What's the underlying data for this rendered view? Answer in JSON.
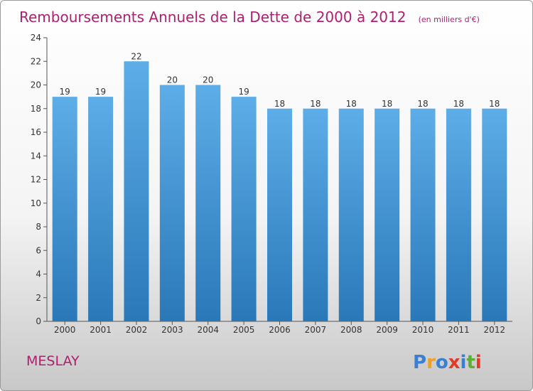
{
  "chart_data": {
    "type": "bar",
    "title": "Remboursements Annuels de la Dette de 2000 à 2012",
    "unit_note": "(en milliers d'€)",
    "categories": [
      "2000",
      "2001",
      "2002",
      "2003",
      "2004",
      "2005",
      "2006",
      "2007",
      "2008",
      "2009",
      "2010",
      "2011",
      "2012"
    ],
    "values": [
      19,
      19,
      22,
      20,
      20,
      19,
      18,
      18,
      18,
      18,
      18,
      18,
      18
    ],
    "ylim": [
      0,
      24
    ],
    "yticks": [
      0,
      2,
      4,
      6,
      8,
      10,
      12,
      14,
      16,
      18,
      20,
      22,
      24
    ],
    "grid": false,
    "bar_color_top": "#5dade8",
    "bar_color_bottom": "#2a78b8"
  },
  "commune": "MESLAY",
  "logo": {
    "letters": [
      "P",
      "r",
      "o",
      "x",
      "i",
      "t",
      "i"
    ],
    "colors": [
      "#3a7fd0",
      "#f0a020",
      "#3a7fd0",
      "#e03a2a",
      "#3a7fd0",
      "#5ab030",
      "#e03a2a"
    ]
  }
}
